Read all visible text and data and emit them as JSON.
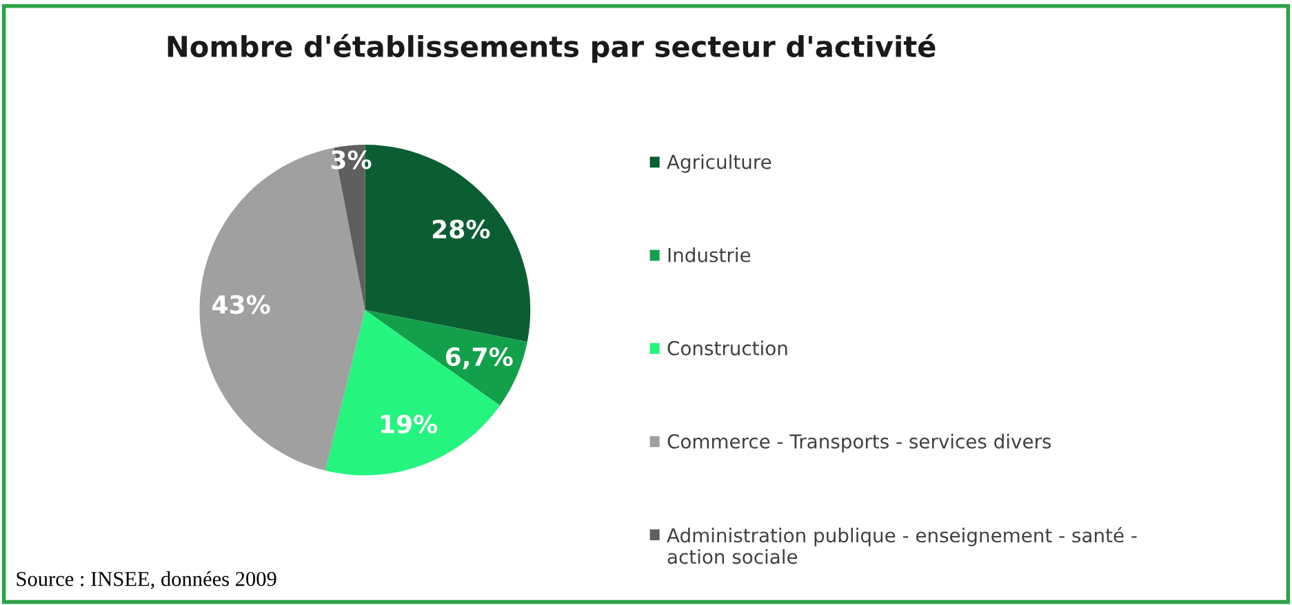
{
  "chart_data": {
    "type": "pie",
    "title": "Nombre d'établissements par secteur d'activité",
    "categories": [
      "Agriculture",
      "Industrie",
      "Construction",
      "Commerce - Transports - services divers",
      "Administration publique - enseignement - santé - action sociale"
    ],
    "values": [
      28,
      6.7,
      19,
      43,
      3
    ],
    "value_labels": [
      "28%",
      "6,7%",
      "19%",
      "43%",
      "3%"
    ],
    "colors": [
      "#0b5e32",
      "#12a04a",
      "#25f47f",
      "#a0a0a0",
      "#5f5f5f"
    ],
    "legend": "right",
    "annotations": [
      "Source : INSEE, données 2009"
    ]
  }
}
